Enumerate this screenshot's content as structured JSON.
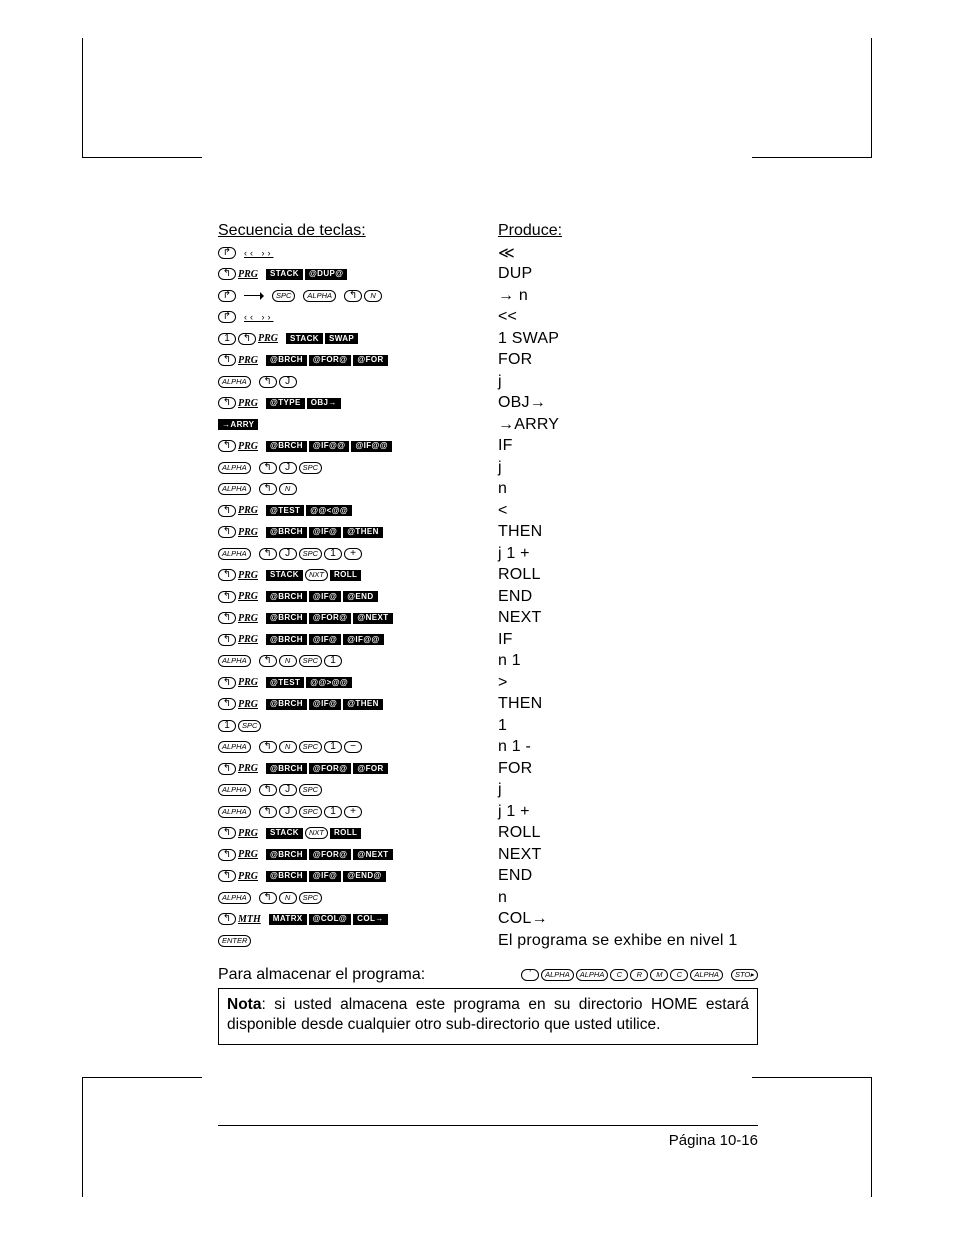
{
  "headers": {
    "left": "Secuencia de teclas:",
    "right": "Produce:"
  },
  "rows": [
    {
      "keys": [
        {
          "t": "key",
          "v": "↱",
          "c": "ksym"
        },
        {
          "t": "gap"
        },
        {
          "t": "quot",
          "v": "‹‹ ››"
        }
      ],
      "prod": "≪"
    },
    {
      "keys": [
        {
          "t": "key",
          "v": "↰",
          "c": "ksym"
        },
        {
          "t": "shift",
          "v": "PRG"
        },
        {
          "t": "gap"
        },
        {
          "t": "soft",
          "v": "STACK"
        },
        {
          "t": "soft",
          "v": "@DUP@"
        }
      ],
      "prod": "DUP"
    },
    {
      "keys": [
        {
          "t": "key",
          "v": "↱",
          "c": "ksym"
        },
        {
          "t": "gap"
        },
        {
          "t": "arrow"
        },
        {
          "t": "gap"
        },
        {
          "t": "key",
          "v": "SPC"
        },
        {
          "t": "gap"
        },
        {
          "t": "key",
          "v": "ALPHA"
        },
        {
          "t": "gap"
        },
        {
          "t": "key",
          "v": "↰",
          "c": "ksym"
        },
        {
          "t": "key",
          "v": "N"
        }
      ],
      "prod": "→ n"
    },
    {
      "keys": [
        {
          "t": "key",
          "v": "↱",
          "c": "ksym"
        },
        {
          "t": "gap"
        },
        {
          "t": "quot",
          "v": "‹‹ ››"
        }
      ],
      "prod": "<<"
    },
    {
      "keys": [
        {
          "t": "key",
          "v": "1",
          "c": "ksym"
        },
        {
          "t": "key",
          "v": "↰",
          "c": "ksym"
        },
        {
          "t": "shift",
          "v": "PRG"
        },
        {
          "t": "gap"
        },
        {
          "t": "soft",
          "v": "STACK"
        },
        {
          "t": "soft",
          "v": "SWAP"
        }
      ],
      "prod": "1 SWAP"
    },
    {
      "keys": [
        {
          "t": "key",
          "v": "↰",
          "c": "ksym"
        },
        {
          "t": "shift",
          "v": "PRG"
        },
        {
          "t": "gap"
        },
        {
          "t": "soft",
          "v": "@BRCH"
        },
        {
          "t": "soft",
          "v": "@FOR@"
        },
        {
          "t": "soft",
          "v": "@FOR"
        }
      ],
      "prod": "FOR"
    },
    {
      "keys": [
        {
          "t": "key",
          "v": "ALPHA"
        },
        {
          "t": "gap"
        },
        {
          "t": "key",
          "v": "↰",
          "c": "ksym"
        },
        {
          "t": "key",
          "v": "J",
          "c": "ksym"
        }
      ],
      "prod": "j"
    },
    {
      "keys": [
        {
          "t": "key",
          "v": "↰",
          "c": "ksym"
        },
        {
          "t": "shift",
          "v": "PRG"
        },
        {
          "t": "gap"
        },
        {
          "t": "soft",
          "v": "@TYPE"
        },
        {
          "t": "soft",
          "v": "OBJ→"
        }
      ],
      "prod": "OBJ→"
    },
    {
      "keys": [
        {
          "t": "soft",
          "v": "→ARRY"
        }
      ],
      "prod": "→ARRY"
    },
    {
      "keys": [
        {
          "t": "key",
          "v": "↰",
          "c": "ksym"
        },
        {
          "t": "shift",
          "v": "PRG"
        },
        {
          "t": "gap"
        },
        {
          "t": "soft",
          "v": "@BRCH"
        },
        {
          "t": "soft",
          "v": "@IF@@"
        },
        {
          "t": "soft",
          "v": "@IF@@"
        }
      ],
      "prod": "IF"
    },
    {
      "keys": [
        {
          "t": "key",
          "v": "ALPHA"
        },
        {
          "t": "gap"
        },
        {
          "t": "key",
          "v": "↰",
          "c": "ksym"
        },
        {
          "t": "key",
          "v": "J",
          "c": "ksym"
        },
        {
          "t": "key",
          "v": "SPC"
        }
      ],
      "prod": "j"
    },
    {
      "keys": [
        {
          "t": "key",
          "v": "ALPHA"
        },
        {
          "t": "gap"
        },
        {
          "t": "key",
          "v": "↰",
          "c": "ksym"
        },
        {
          "t": "key",
          "v": "N"
        }
      ],
      "prod": "n"
    },
    {
      "keys": [
        {
          "t": "key",
          "v": "↰",
          "c": "ksym"
        },
        {
          "t": "shift",
          "v": "PRG"
        },
        {
          "t": "gap"
        },
        {
          "t": "soft",
          "v": "@TEST"
        },
        {
          "t": "soft",
          "v": "@@<@@"
        }
      ],
      "prod": "<"
    },
    {
      "keys": [
        {
          "t": "key",
          "v": "↰",
          "c": "ksym"
        },
        {
          "t": "shift",
          "v": "PRG"
        },
        {
          "t": "gap"
        },
        {
          "t": "soft",
          "v": "@BRCH"
        },
        {
          "t": "soft",
          "v": "@IF@"
        },
        {
          "t": "soft",
          "v": "@THEN"
        }
      ],
      "prod": "THEN"
    },
    {
      "keys": [
        {
          "t": "key",
          "v": "ALPHA"
        },
        {
          "t": "gap"
        },
        {
          "t": "key",
          "v": "↰",
          "c": "ksym"
        },
        {
          "t": "key",
          "v": "J",
          "c": "ksym"
        },
        {
          "t": "key",
          "v": "SPC"
        },
        {
          "t": "key",
          "v": "1",
          "c": "ksym"
        },
        {
          "t": "key",
          "v": "+",
          "c": "ksym"
        }
      ],
      "prod": "j 1  +"
    },
    {
      "keys": [
        {
          "t": "key",
          "v": "↰",
          "c": "ksym"
        },
        {
          "t": "shift",
          "v": "PRG"
        },
        {
          "t": "gap"
        },
        {
          "t": "soft",
          "v": "STACK"
        },
        {
          "t": "key",
          "v": "NXT"
        },
        {
          "t": "soft",
          "v": "ROLL"
        }
      ],
      "prod": "ROLL"
    },
    {
      "keys": [
        {
          "t": "key",
          "v": "↰",
          "c": "ksym"
        },
        {
          "t": "shift",
          "v": "PRG"
        },
        {
          "t": "gap"
        },
        {
          "t": "soft",
          "v": "@BRCH"
        },
        {
          "t": "soft",
          "v": "@IF@"
        },
        {
          "t": "soft",
          "v": "@END"
        }
      ],
      "prod": "END"
    },
    {
      "keys": [
        {
          "t": "key",
          "v": "↰",
          "c": "ksym"
        },
        {
          "t": "shift",
          "v": "PRG"
        },
        {
          "t": "gap"
        },
        {
          "t": "soft",
          "v": "@BRCH"
        },
        {
          "t": "soft",
          "v": "@FOR@"
        },
        {
          "t": "soft",
          "v": "@NEXT"
        }
      ],
      "prod": "NEXT"
    },
    {
      "keys": [
        {
          "t": "key",
          "v": "↰",
          "c": "ksym"
        },
        {
          "t": "shift",
          "v": "PRG"
        },
        {
          "t": "gap"
        },
        {
          "t": "soft",
          "v": "@BRCH"
        },
        {
          "t": "soft",
          "v": "@IF@"
        },
        {
          "t": "soft",
          "v": "@IF@@"
        }
      ],
      "prod": "IF"
    },
    {
      "keys": [
        {
          "t": "key",
          "v": "ALPHA"
        },
        {
          "t": "gap"
        },
        {
          "t": "key",
          "v": "↰",
          "c": "ksym"
        },
        {
          "t": "key",
          "v": "N"
        },
        {
          "t": "key",
          "v": "SPC"
        },
        {
          "t": "key",
          "v": "1",
          "c": "ksym"
        }
      ],
      "prod": "n 1"
    },
    {
      "keys": [
        {
          "t": "key",
          "v": "↰",
          "c": "ksym"
        },
        {
          "t": "shift",
          "v": "PRG"
        },
        {
          "t": "gap"
        },
        {
          "t": "soft",
          "v": "@TEST"
        },
        {
          "t": "soft",
          "v": "@@>@@"
        }
      ],
      "prod": ">"
    },
    {
      "keys": [
        {
          "t": "key",
          "v": "↰",
          "c": "ksym"
        },
        {
          "t": "shift",
          "v": "PRG"
        },
        {
          "t": "gap"
        },
        {
          "t": "soft",
          "v": "@BRCH"
        },
        {
          "t": "soft",
          "v": "@IF@"
        },
        {
          "t": "soft",
          "v": "@THEN"
        }
      ],
      "prod": "THEN"
    },
    {
      "keys": [
        {
          "t": "key",
          "v": "1",
          "c": "ksym"
        },
        {
          "t": "key",
          "v": "SPC"
        }
      ],
      "prod": "1"
    },
    {
      "keys": [
        {
          "t": "key",
          "v": "ALPHA"
        },
        {
          "t": "gap"
        },
        {
          "t": "key",
          "v": "↰",
          "c": "ksym"
        },
        {
          "t": "key",
          "v": "N"
        },
        {
          "t": "key",
          "v": "SPC"
        },
        {
          "t": "key",
          "v": "1",
          "c": "ksym"
        },
        {
          "t": "key",
          "v": "−",
          "c": "ksym"
        }
      ],
      "prod": "n 1 -"
    },
    {
      "keys": [
        {
          "t": "key",
          "v": "↰",
          "c": "ksym"
        },
        {
          "t": "shift",
          "v": "PRG"
        },
        {
          "t": "gap"
        },
        {
          "t": "soft",
          "v": "@BRCH"
        },
        {
          "t": "soft",
          "v": "@FOR@"
        },
        {
          "t": "soft",
          "v": "@FOR"
        }
      ],
      "prod": "FOR"
    },
    {
      "keys": [
        {
          "t": "key",
          "v": "ALPHA"
        },
        {
          "t": "gap"
        },
        {
          "t": "key",
          "v": "↰",
          "c": "ksym"
        },
        {
          "t": "key",
          "v": "J",
          "c": "ksym"
        },
        {
          "t": "key",
          "v": "SPC"
        }
      ],
      "prod": "j"
    },
    {
      "keys": [
        {
          "t": "key",
          "v": "ALPHA"
        },
        {
          "t": "gap"
        },
        {
          "t": "key",
          "v": "↰",
          "c": "ksym"
        },
        {
          "t": "key",
          "v": "J",
          "c": "ksym"
        },
        {
          "t": "key",
          "v": "SPC"
        },
        {
          "t": "key",
          "v": "1",
          "c": "ksym"
        },
        {
          "t": "key",
          "v": "+",
          "c": "ksym"
        }
      ],
      "prod": "j 1 +"
    },
    {
      "keys": [
        {
          "t": "key",
          "v": "↰",
          "c": "ksym"
        },
        {
          "t": "shift",
          "v": "PRG"
        },
        {
          "t": "gap"
        },
        {
          "t": "soft",
          "v": "STACK"
        },
        {
          "t": "key",
          "v": "NXT"
        },
        {
          "t": "soft",
          "v": "ROLL"
        }
      ],
      "prod": "ROLL"
    },
    {
      "keys": [
        {
          "t": "key",
          "v": "↰",
          "c": "ksym"
        },
        {
          "t": "shift",
          "v": "PRG"
        },
        {
          "t": "gap"
        },
        {
          "t": "soft",
          "v": "@BRCH"
        },
        {
          "t": "soft",
          "v": "@FOR@"
        },
        {
          "t": "soft",
          "v": "@NEXT"
        }
      ],
      "prod": "NEXT"
    },
    {
      "keys": [
        {
          "t": "key",
          "v": "↰",
          "c": "ksym"
        },
        {
          "t": "shift",
          "v": "PRG"
        },
        {
          "t": "gap"
        },
        {
          "t": "soft",
          "v": "@BRCH"
        },
        {
          "t": "soft",
          "v": "@IF@"
        },
        {
          "t": "soft",
          "v": "@END@"
        }
      ],
      "prod": "END"
    },
    {
      "keys": [
        {
          "t": "key",
          "v": "ALPHA"
        },
        {
          "t": "gap"
        },
        {
          "t": "key",
          "v": "↰",
          "c": "ksym"
        },
        {
          "t": "key",
          "v": "N"
        },
        {
          "t": "key",
          "v": "SPC"
        }
      ],
      "prod": "n"
    },
    {
      "keys": [
        {
          "t": "key",
          "v": "↰",
          "c": "ksym"
        },
        {
          "t": "shift",
          "v": "MTH"
        },
        {
          "t": "gap"
        },
        {
          "t": "soft",
          "v": "MATRX"
        },
        {
          "t": "soft",
          "v": "@COL@"
        },
        {
          "t": "soft",
          "v": "COL→"
        }
      ],
      "prod": "COL→"
    },
    {
      "keys": [
        {
          "t": "key",
          "v": "ENTER"
        }
      ],
      "prod": "El programa se exhibe en nivel 1"
    }
  ],
  "store": {
    "label": "Para almacenar el programa:",
    "keys": [
      {
        "t": "key",
        "v": "ʼ",
        "c": "ksym"
      },
      {
        "t": "key",
        "v": "ALPHA"
      },
      {
        "t": "key",
        "v": "ALPHA"
      },
      {
        "t": "key",
        "v": "C"
      },
      {
        "t": "key",
        "v": "R"
      },
      {
        "t": "key",
        "v": "M"
      },
      {
        "t": "key",
        "v": "C"
      },
      {
        "t": "key",
        "v": "ALPHA"
      },
      {
        "t": "gap"
      },
      {
        "t": "key",
        "v": "STO▸"
      }
    ]
  },
  "note": {
    "bold": "Nota",
    "rest": ": si usted almacena este programa en su directorio HOME estará disponible desde cualquier otro sub-directorio que usted utilice."
  },
  "pagenum": "Página 10-16"
}
